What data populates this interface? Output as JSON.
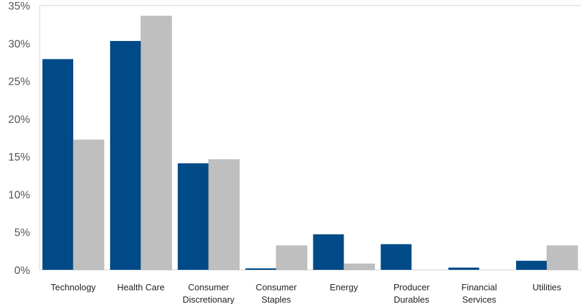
{
  "chart_data": {
    "type": "bar",
    "title": "",
    "xlabel": "",
    "ylabel": "",
    "ylim": [
      0,
      35
    ],
    "yticks": [
      "0%",
      "5%",
      "10%",
      "15%",
      "20%",
      "25%",
      "30%",
      "35%"
    ],
    "grid": false,
    "categories": [
      [
        "Technology"
      ],
      [
        "Health Care"
      ],
      [
        "Consumer",
        "Discretionary"
      ],
      [
        "Consumer",
        "Staples"
      ],
      [
        "Energy"
      ],
      [
        "Producer",
        "Durables"
      ],
      [
        "Financial",
        "Services"
      ],
      [
        "Utilities"
      ]
    ],
    "series": [
      {
        "color": "#004A87",
        "values": [
          27.9,
          30.3,
          14.1,
          0.2,
          4.7,
          3.4,
          0.3,
          1.2
        ]
      },
      {
        "color": "#BFBFBF",
        "values": [
          17.2,
          33.6,
          14.6,
          3.2,
          0.8,
          0.0,
          0.0,
          3.2
        ]
      }
    ]
  }
}
